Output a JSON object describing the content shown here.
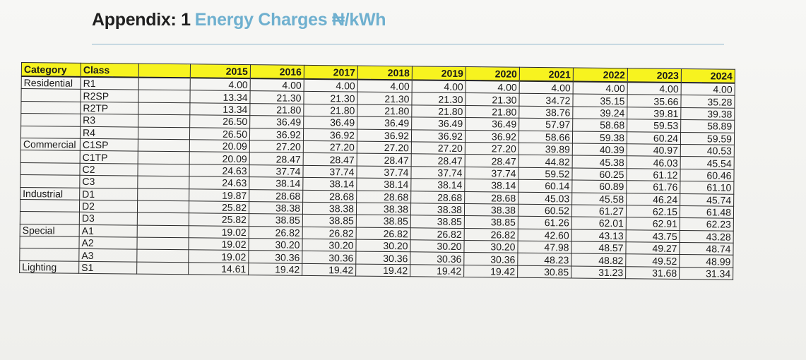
{
  "heading": {
    "prefix": "Appendix: 1",
    "title": "Energy Charges ₦/kWh"
  },
  "colors": {
    "header_fill": "#f7f31f",
    "title_accent": "#6fb0cf"
  },
  "table": {
    "headers": {
      "category": "Category",
      "class": "Class",
      "years": [
        "2015",
        "2016",
        "2017",
        "2018",
        "2019",
        "2020",
        "2021",
        "2022",
        "2023",
        "2024"
      ]
    },
    "rows": [
      {
        "category": "Residential",
        "class": "R1",
        "values": [
          "4.00",
          "4.00",
          "4.00",
          "4.00",
          "4.00",
          "4.00",
          "4.00",
          "4.00",
          "4.00",
          "4.00"
        ]
      },
      {
        "category": "",
        "class": "R2SP",
        "values": [
          "13.34",
          "21.30",
          "21.30",
          "21.30",
          "21.30",
          "21.30",
          "34.72",
          "35.15",
          "35.66",
          "35.28"
        ]
      },
      {
        "category": "",
        "class": "R2TP",
        "values": [
          "13.34",
          "21.80",
          "21.80",
          "21.80",
          "21.80",
          "21.80",
          "38.76",
          "39.24",
          "39.81",
          "39.38"
        ]
      },
      {
        "category": "",
        "class": "R3",
        "values": [
          "26.50",
          "36.49",
          "36.49",
          "36.49",
          "36.49",
          "36.49",
          "57.97",
          "58.68",
          "59.53",
          "58.89"
        ]
      },
      {
        "category": "",
        "class": "R4",
        "values": [
          "26.50",
          "36.92",
          "36.92",
          "36.92",
          "36.92",
          "36.92",
          "58.66",
          "59.38",
          "60.24",
          "59.59"
        ]
      },
      {
        "category": "Commercial",
        "class": "C1SP",
        "values": [
          "20.09",
          "27.20",
          "27.20",
          "27.20",
          "27.20",
          "27.20",
          "39.89",
          "40.39",
          "40.97",
          "40.53"
        ]
      },
      {
        "category": "",
        "class": "C1TP",
        "values": [
          "20.09",
          "28.47",
          "28.47",
          "28.47",
          "28.47",
          "28.47",
          "44.82",
          "45.38",
          "46.03",
          "45.54"
        ]
      },
      {
        "category": "",
        "class": "C2",
        "values": [
          "24.63",
          "37.74",
          "37.74",
          "37.74",
          "37.74",
          "37.74",
          "59.52",
          "60.25",
          "61.12",
          "60.46"
        ]
      },
      {
        "category": "",
        "class": "C3",
        "values": [
          "24.63",
          "38.14",
          "38.14",
          "38.14",
          "38.14",
          "38.14",
          "60.14",
          "60.89",
          "61.76",
          "61.10"
        ]
      },
      {
        "category": "Industrial",
        "class": "D1",
        "values": [
          "19.87",
          "28.68",
          "28.68",
          "28.68",
          "28.68",
          "28.68",
          "45.03",
          "45.58",
          "46.24",
          "45.74"
        ]
      },
      {
        "category": "",
        "class": "D2",
        "values": [
          "25.82",
          "38.38",
          "38.38",
          "38.38",
          "38.38",
          "38.38",
          "60.52",
          "61.27",
          "62.15",
          "61.48"
        ]
      },
      {
        "category": "",
        "class": "D3",
        "values": [
          "25.82",
          "38.85",
          "38.85",
          "38.85",
          "38.85",
          "38.85",
          "61.26",
          "62.01",
          "62.91",
          "62.23"
        ]
      },
      {
        "category": "Special",
        "class": "A1",
        "values": [
          "19.02",
          "26.82",
          "26.82",
          "26.82",
          "26.82",
          "26.82",
          "42.60",
          "43.13",
          "43.75",
          "43.28"
        ]
      },
      {
        "category": "",
        "class": "A2",
        "values": [
          "19.02",
          "30.20",
          "30.20",
          "30.20",
          "30.20",
          "30.20",
          "47.98",
          "48.57",
          "49.27",
          "48.74"
        ]
      },
      {
        "category": "",
        "class": "A3",
        "values": [
          "19.02",
          "30.36",
          "30.36",
          "30.36",
          "30.36",
          "30.36",
          "48.23",
          "48.82",
          "49.52",
          "48.99"
        ]
      },
      {
        "category": "Lighting",
        "class": "S1",
        "values": [
          "14.61",
          "19.42",
          "19.42",
          "19.42",
          "19.42",
          "19.42",
          "30.85",
          "31.23",
          "31.68",
          "31.34"
        ]
      }
    ]
  }
}
